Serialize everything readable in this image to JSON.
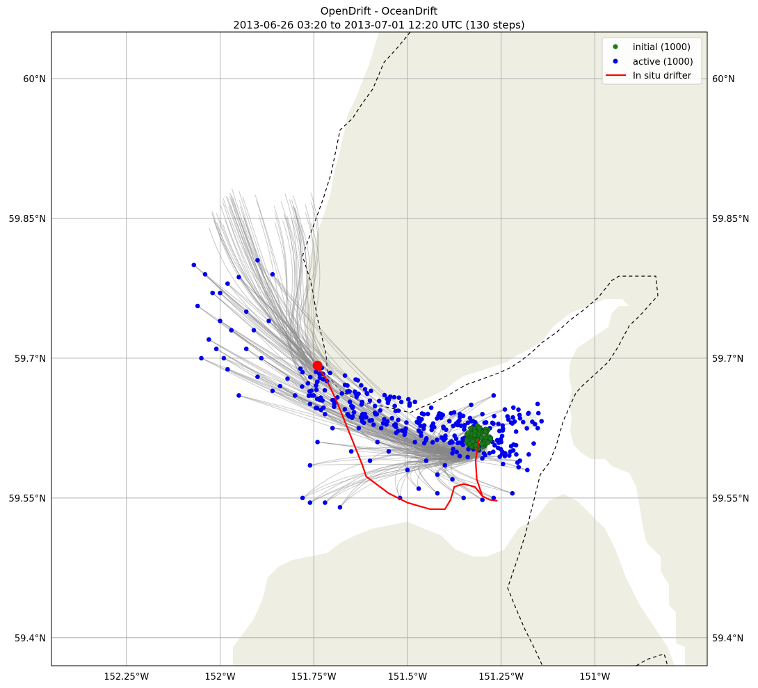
{
  "chart_data": {
    "type": "scatter",
    "title": "OpenDrift - OceanDrift",
    "subtitle": "2013-06-26 03:20 to 2013-07-01 12:20 UTC (130 steps)",
    "xlim": [
      -152.45,
      -150.7
    ],
    "ylim": [
      59.37,
      60.05
    ],
    "grid": true,
    "legend_position": "top-right",
    "x_ticks": [
      {
        "value": -152.25,
        "label": "152.25°W"
      },
      {
        "value": -152.0,
        "label": "152°W"
      },
      {
        "value": -151.75,
        "label": "151.75°W"
      },
      {
        "value": -151.5,
        "label": "151.5°W"
      },
      {
        "value": -151.25,
        "label": "151.25°W"
      },
      {
        "value": -151.0,
        "label": "151°W"
      }
    ],
    "y_ticks": [
      {
        "value": 59.4,
        "label": "59.4°N"
      },
      {
        "value": 59.55,
        "label": "59.55°N"
      },
      {
        "value": 59.7,
        "label": "59.7°N"
      },
      {
        "value": 59.85,
        "label": "59.85°N"
      },
      {
        "value": 60.0,
        "label": "60°N"
      }
    ],
    "legend": [
      {
        "label": "initial (1000)",
        "kind": "point",
        "color": "#1a7a1a"
      },
      {
        "label": "active (1000)",
        "kind": "point",
        "color": "#0000ee"
      },
      {
        "label": "In situ drifter",
        "kind": "line",
        "color": "#ff0000"
      }
    ],
    "colors": {
      "land": "#eeeee2",
      "trajectory": "#888888",
      "initial": "#1a7a1a",
      "active": "#0000ee",
      "drifter": "#ff0000",
      "grid": "#b0b0b0"
    },
    "initial_cluster": {
      "lon": -151.31,
      "lat": 59.615,
      "count": 1000
    },
    "drifter_track": [
      [
        -151.74,
        59.69
      ],
      [
        -151.72,
        59.68
      ],
      [
        -151.69,
        59.655
      ],
      [
        -151.66,
        59.625
      ],
      [
        -151.62,
        59.585
      ],
      [
        -151.61,
        59.573
      ],
      [
        -151.55,
        59.555
      ],
      [
        -151.5,
        59.545
      ],
      [
        -151.44,
        59.538
      ],
      [
        -151.4,
        59.538
      ],
      [
        -151.385,
        59.548
      ],
      [
        -151.375,
        59.562
      ],
      [
        -151.35,
        59.565
      ],
      [
        -151.32,
        59.562
      ],
      [
        -151.3,
        59.552
      ],
      [
        -151.28,
        59.548
      ],
      [
        -151.26,
        59.547
      ]
    ],
    "drifter_branch": [
      [
        -151.3,
        59.552
      ],
      [
        -151.315,
        59.57
      ],
      [
        -151.318,
        59.59
      ],
      [
        -151.31,
        59.612
      ]
    ],
    "drifter_end": [
      -151.74,
      59.692
    ],
    "active_samples": [
      [
        -152.07,
        59.8
      ],
      [
        -152.04,
        59.79
      ],
      [
        -152.02,
        59.77
      ],
      [
        -152.06,
        59.756
      ],
      [
        -151.98,
        59.78
      ],
      [
        -151.95,
        59.787
      ],
      [
        -151.9,
        59.805
      ],
      [
        -151.86,
        59.79
      ],
      [
        -151.93,
        59.75
      ],
      [
        -152.0,
        59.74
      ],
      [
        -152.03,
        59.72
      ],
      [
        -151.97,
        59.73
      ],
      [
        -152.01,
        59.71
      ],
      [
        -151.93,
        59.71
      ],
      [
        -151.89,
        59.7
      ],
      [
        -152.05,
        59.7
      ],
      [
        -151.98,
        59.688
      ],
      [
        -151.9,
        59.68
      ],
      [
        -151.86,
        59.665
      ],
      [
        -151.82,
        59.678
      ],
      [
        -151.78,
        59.685
      ],
      [
        -151.75,
        59.66
      ],
      [
        -151.7,
        59.655
      ],
      [
        -151.66,
        59.64
      ],
      [
        -151.62,
        59.64
      ],
      [
        -151.57,
        59.625
      ],
      [
        -151.53,
        59.62
      ],
      [
        -151.48,
        59.61
      ],
      [
        -151.45,
        59.59
      ],
      [
        -151.42,
        59.575
      ],
      [
        -151.38,
        59.57
      ],
      [
        -151.7,
        59.625
      ],
      [
        -151.74,
        59.61
      ],
      [
        -151.76,
        59.585
      ],
      [
        -151.65,
        59.6
      ],
      [
        -151.6,
        59.59
      ],
      [
        -151.55,
        59.6
      ],
      [
        -151.5,
        59.58
      ],
      [
        -151.47,
        59.56
      ],
      [
        -151.42,
        59.555
      ],
      [
        -151.35,
        59.55
      ],
      [
        -151.3,
        59.548
      ],
      [
        -151.27,
        59.55
      ],
      [
        -151.3,
        59.64
      ],
      [
        -151.33,
        59.65
      ],
      [
        -151.27,
        59.66
      ],
      [
        -151.24,
        59.645
      ],
      [
        -151.22,
        59.63
      ],
      [
        -151.36,
        59.64
      ],
      [
        -151.25,
        59.61
      ],
      [
        -151.2,
        59.59
      ],
      [
        -151.18,
        59.58
      ],
      [
        -151.22,
        59.555
      ],
      [
        -151.78,
        59.55
      ],
      [
        -151.76,
        59.545
      ],
      [
        -151.72,
        59.545
      ],
      [
        -151.68,
        59.54
      ],
      [
        -151.52,
        59.55
      ],
      [
        -151.28,
        59.625
      ],
      [
        -151.24,
        59.595
      ],
      [
        -151.38,
        59.598
      ],
      [
        -151.4,
        59.585
      ],
      [
        -151.58,
        59.61
      ],
      [
        -151.63,
        59.625
      ],
      [
        -151.72,
        59.64
      ],
      [
        -151.8,
        59.66
      ],
      [
        -151.84,
        59.67
      ],
      [
        -151.95,
        59.66
      ],
      [
        -151.99,
        59.7
      ],
      [
        -151.91,
        59.73
      ],
      [
        -151.87,
        59.74
      ],
      [
        -152.0,
        59.77
      ]
    ]
  }
}
